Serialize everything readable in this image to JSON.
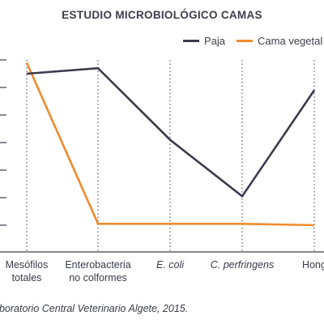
{
  "chart_data": {
    "type": "line",
    "title": "ESTUDIO MICROBIOLÓGICO CAMAS",
    "categories": [
      "Mesófilos\ntotales",
      "Enterobacteria\nno colformes",
      "E. coli",
      "C. perfringens",
      "Hong"
    ],
    "series": [
      {
        "name": "Paja",
        "color": "#3b3a4d",
        "values": [
          5.5,
          5.7,
          3.1,
          1.05,
          4.9
        ]
      },
      {
        "name": "Cama vegetal",
        "color": "#f08a2e",
        "values": [
          5.9,
          0.05,
          0.05,
          0.05,
          0.0
        ]
      }
    ],
    "ylim": [
      -1,
      6.5
    ],
    "yticks": [
      0,
      1,
      2,
      3,
      4,
      5,
      6
    ],
    "grid": "vertical",
    "legend_position": "top-right",
    "xlabel": "",
    "ylabel": "",
    "source": "aboratorio Central Veterinario Algete, 2015."
  }
}
